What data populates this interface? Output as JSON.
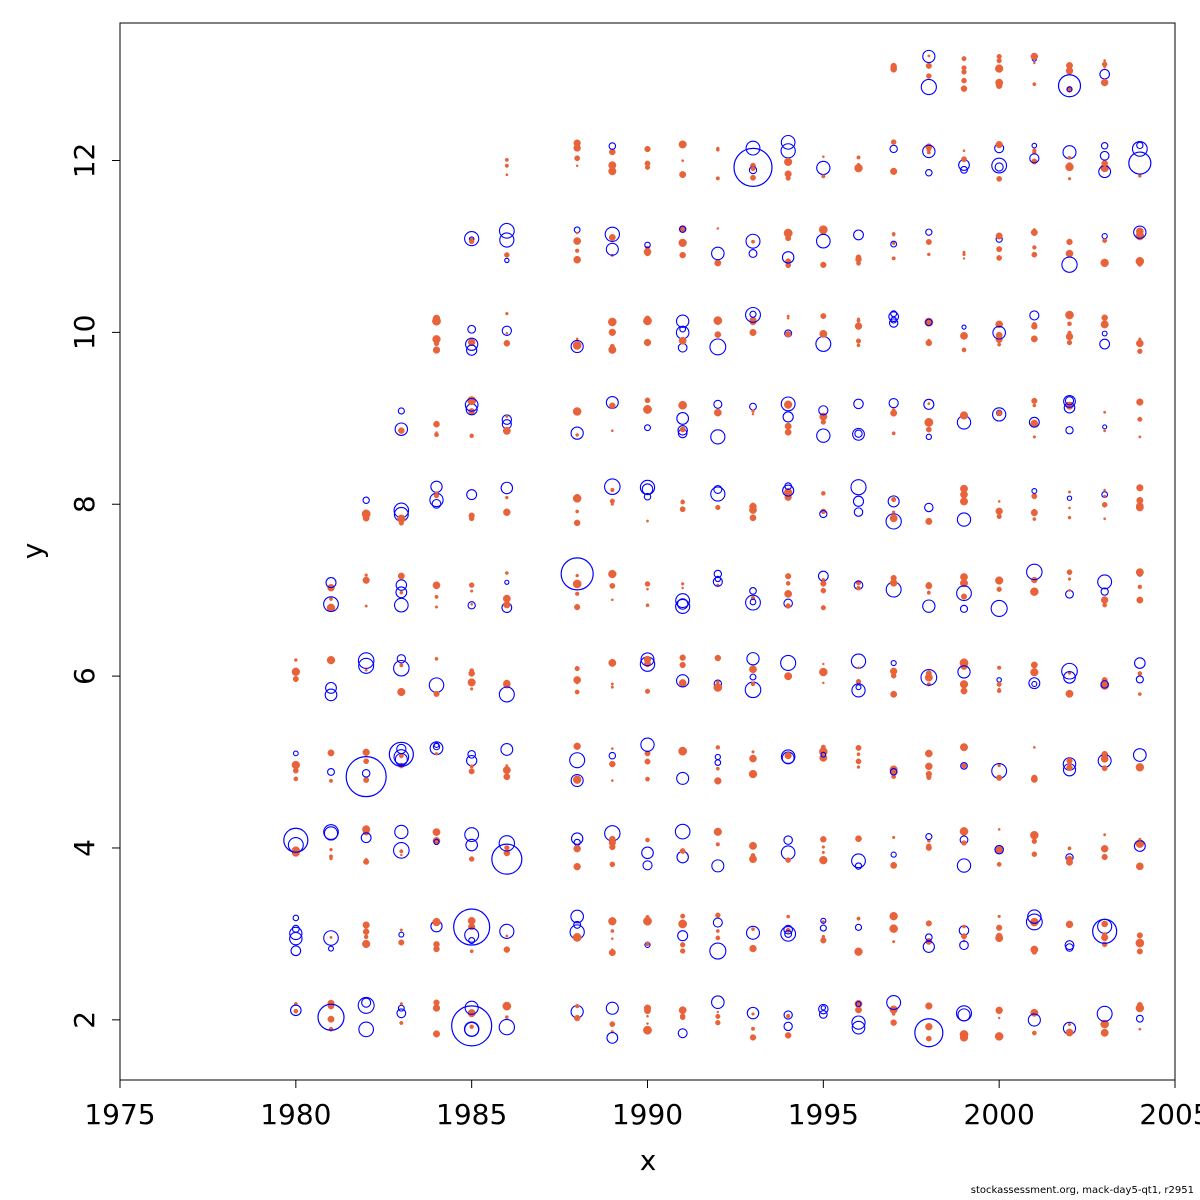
{
  "chart_data": {
    "type": "scatter",
    "title": "",
    "xlabel": "x",
    "ylabel": "y",
    "xlim": [
      1975,
      2005
    ],
    "ylim": [
      1.3,
      13.6
    ],
    "xticks": [
      1975,
      1980,
      1985,
      1990,
      1995,
      2000,
      2005
    ],
    "yticks": [
      2,
      4,
      6,
      8,
      10,
      12
    ],
    "grid": false,
    "legend": "none",
    "colors": {
      "positive": "#e8623a",
      "negative": "#0000ff"
    },
    "series": [
      {
        "name": "positive residuals",
        "style": "filled",
        "color": "#e8623a"
      },
      {
        "name": "negative residuals",
        "style": "open",
        "color": "#0000ff"
      }
    ],
    "years": [
      1980,
      1981,
      1982,
      1983,
      1984,
      1985,
      1986,
      1988,
      1989,
      1990,
      1991,
      1992,
      1993,
      1994,
      1995,
      1996,
      1997,
      1998,
      1999,
      2000,
      2001,
      2002,
      2003,
      2004
    ],
    "ages": [
      2,
      3,
      4,
      5,
      6,
      7,
      8,
      9,
      10,
      11,
      12,
      13
    ],
    "first_age_by_year": {
      "1980": 2,
      "1981": 2,
      "1982": 2,
      "1983": 2,
      "1984": 2,
      "1985": 2,
      "1986": 2,
      "1988": 2,
      "1989": 2,
      "1990": 2,
      "1991": 2,
      "1992": 2,
      "1993": 2,
      "1994": 2,
      "1995": 2,
      "1996": 2,
      "1997": 2,
      "1998": 2,
      "1999": 2,
      "2000": 2,
      "2001": 2,
      "2002": 2,
      "2003": 2,
      "2004": 2
    },
    "last_age_by_year": {
      "1980": 6,
      "1981": 7,
      "1982": 8,
      "1983": 9,
      "1984": 10,
      "1985": 11,
      "1986": 12,
      "1988": 12,
      "1989": 12,
      "1990": 12,
      "1991": 12,
      "1992": 12,
      "1993": 12,
      "1994": 12,
      "1995": 12,
      "1996": 12,
      "1997": 13,
      "1998": 13,
      "1999": 13,
      "2000": 13,
      "2001": 13,
      "2002": 13,
      "2003": 13,
      "2004": 12
    },
    "highlighted_points": [
      {
        "x": 1982,
        "y": 4.83,
        "sign": "negative",
        "size": 1.0
      },
      {
        "x": 1985,
        "y": 1.93,
        "sign": "negative",
        "size": 1.0
      },
      {
        "x": 1993,
        "y": 11.92,
        "sign": "negative",
        "size": 0.95
      },
      {
        "x": 1986,
        "y": 3.87,
        "sign": "negative",
        "size": 0.75
      },
      {
        "x": 1985,
        "y": 3.08,
        "sign": "negative",
        "size": 0.9
      },
      {
        "x": 1988,
        "y": 7.19,
        "sign": "negative",
        "size": 0.8
      },
      {
        "x": 2002,
        "y": 12.87,
        "sign": "negative",
        "size": 0.55
      },
      {
        "x": 1980,
        "y": 4.09,
        "sign": "negative",
        "size": 0.6
      },
      {
        "x": 1981,
        "y": 2.03,
        "sign": "negative",
        "size": 0.65
      },
      {
        "x": 1983,
        "y": 5.09,
        "sign": "negative",
        "size": 0.6
      },
      {
        "x": 2004,
        "y": 11.97,
        "sign": "negative",
        "size": 0.55
      },
      {
        "x": 2003,
        "y": 3.03,
        "sign": "negative",
        "size": 0.6
      },
      {
        "x": 1998,
        "y": 1.85,
        "sign": "negative",
        "size": 0.7
      }
    ]
  },
  "footer": {
    "caption": "stockassessment.org, mack-day5-qt1, r2951"
  }
}
